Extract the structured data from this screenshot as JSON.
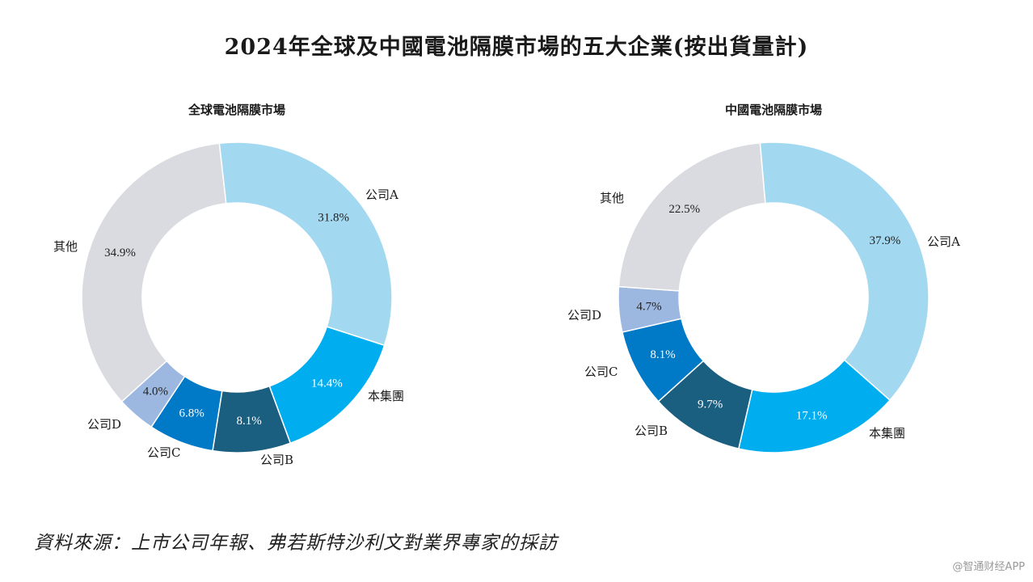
{
  "title": "2024年全球及中國電池隔膜市場的五大企業(按出貨量計)",
  "source": "資料來源：上市公司年報、弗若斯特沙利文對業界專家的採訪",
  "watermark": "@智通财经APP",
  "chart_data": [
    {
      "type": "pie",
      "title": "全球電池隔膜市場",
      "segments": [
        {
          "label": "公司A",
          "value": 31.8,
          "display": "31.8%",
          "color": "#a3d8f1"
        },
        {
          "label": "本集團",
          "value": 14.4,
          "display": "14.4%",
          "color": "#00aeef"
        },
        {
          "label": "公司B",
          "value": 8.1,
          "display": "8.1%",
          "color": "#1a5e80"
        },
        {
          "label": "公司C",
          "value": 6.8,
          "display": "6.8%",
          "color": "#0079c6"
        },
        {
          "label": "公司D",
          "value": 4.0,
          "display": "4.0%",
          "color": "#9db8e0"
        },
        {
          "label": "其他",
          "value": 34.9,
          "display": "34.9%",
          "color": "#d9dbe0"
        }
      ]
    },
    {
      "type": "pie",
      "title": "中國電池隔膜市場",
      "segments": [
        {
          "label": "公司A",
          "value": 37.9,
          "display": "37.9%",
          "color": "#a3d8f1"
        },
        {
          "label": "本集團",
          "value": 17.1,
          "display": "17.1%",
          "color": "#00aeef"
        },
        {
          "label": "公司B",
          "value": 9.7,
          "display": "9.7%",
          "color": "#1a5e80"
        },
        {
          "label": "公司C",
          "value": 8.1,
          "display": "8.1%",
          "color": "#0079c6"
        },
        {
          "label": "公司D",
          "value": 4.7,
          "display": "4.7%",
          "color": "#9db8e0"
        },
        {
          "label": "其他",
          "value": 22.5,
          "display": "22.5%",
          "color": "#d9dbe0"
        }
      ]
    }
  ]
}
